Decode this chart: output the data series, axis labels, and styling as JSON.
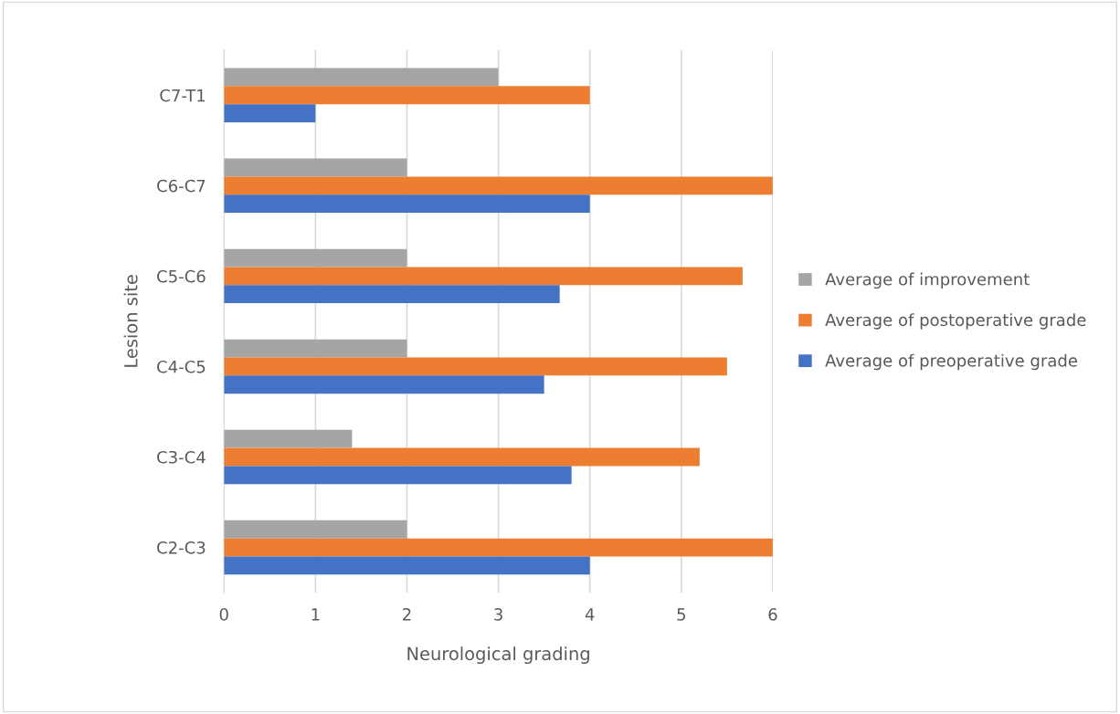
{
  "chart_data": {
    "type": "bar",
    "orientation": "horizontal",
    "xlabel": "Neurological grading",
    "ylabel": "Lesion site",
    "categories": [
      "C7-T1",
      "C6-C7",
      "C5-C6",
      "C4-C5",
      "C3-C4",
      "C2-C3"
    ],
    "series": [
      {
        "name": "Average of improvement",
        "color": "#a5a5a5",
        "values": [
          3,
          2,
          2,
          2,
          1.4,
          2
        ]
      },
      {
        "name": "Average of postoperative grade",
        "color": "#ed7d31",
        "values": [
          4,
          6,
          5.67,
          5.5,
          5.2,
          6
        ]
      },
      {
        "name": "Average of preoperative grade",
        "color": "#4472c4",
        "values": [
          1,
          4,
          3.67,
          3.5,
          3.8,
          4
        ]
      }
    ],
    "xlim": [
      0,
      6
    ],
    "xticks": [
      0,
      1,
      2,
      3,
      4,
      5,
      6
    ],
    "grid": "x",
    "legend": "right"
  }
}
